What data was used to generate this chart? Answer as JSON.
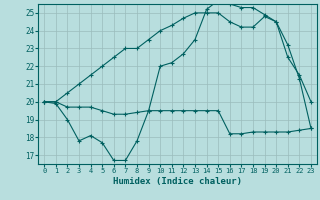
{
  "title": "",
  "xlabel": "Humidex (Indice chaleur)",
  "ylabel": "",
  "bg_color": "#b8dede",
  "grid_color": "#9bbcbc",
  "line_color": "#006060",
  "xlim": [
    -0.5,
    23.5
  ],
  "ylim": [
    16.5,
    25.5
  ],
  "yticks": [
    17,
    18,
    19,
    20,
    21,
    22,
    23,
    24,
    25
  ],
  "xticks": [
    0,
    1,
    2,
    3,
    4,
    5,
    6,
    7,
    8,
    9,
    10,
    11,
    12,
    13,
    14,
    15,
    16,
    17,
    18,
    19,
    20,
    21,
    22,
    23
  ],
  "series1": [
    20.0,
    19.9,
    19.0,
    17.8,
    18.1,
    17.7,
    16.7,
    16.7,
    17.8,
    19.5,
    22.0,
    22.2,
    22.7,
    23.5,
    25.2,
    25.7,
    25.5,
    25.3,
    25.3,
    24.9,
    24.5,
    23.2,
    21.3,
    18.5
  ],
  "series2": [
    20.0,
    20.0,
    19.7,
    19.7,
    19.7,
    19.5,
    19.3,
    19.3,
    19.4,
    19.5,
    19.5,
    19.5,
    19.5,
    19.5,
    19.5,
    19.5,
    18.2,
    18.2,
    18.3,
    18.3,
    18.3,
    18.3,
    18.4,
    18.5
  ],
  "series3": [
    20.0,
    20.0,
    20.5,
    21.0,
    21.5,
    22.0,
    22.5,
    23.0,
    23.0,
    23.5,
    24.0,
    24.3,
    24.7,
    25.0,
    25.0,
    25.0,
    24.5,
    24.2,
    24.2,
    24.8,
    24.5,
    22.5,
    21.5,
    20.0
  ]
}
